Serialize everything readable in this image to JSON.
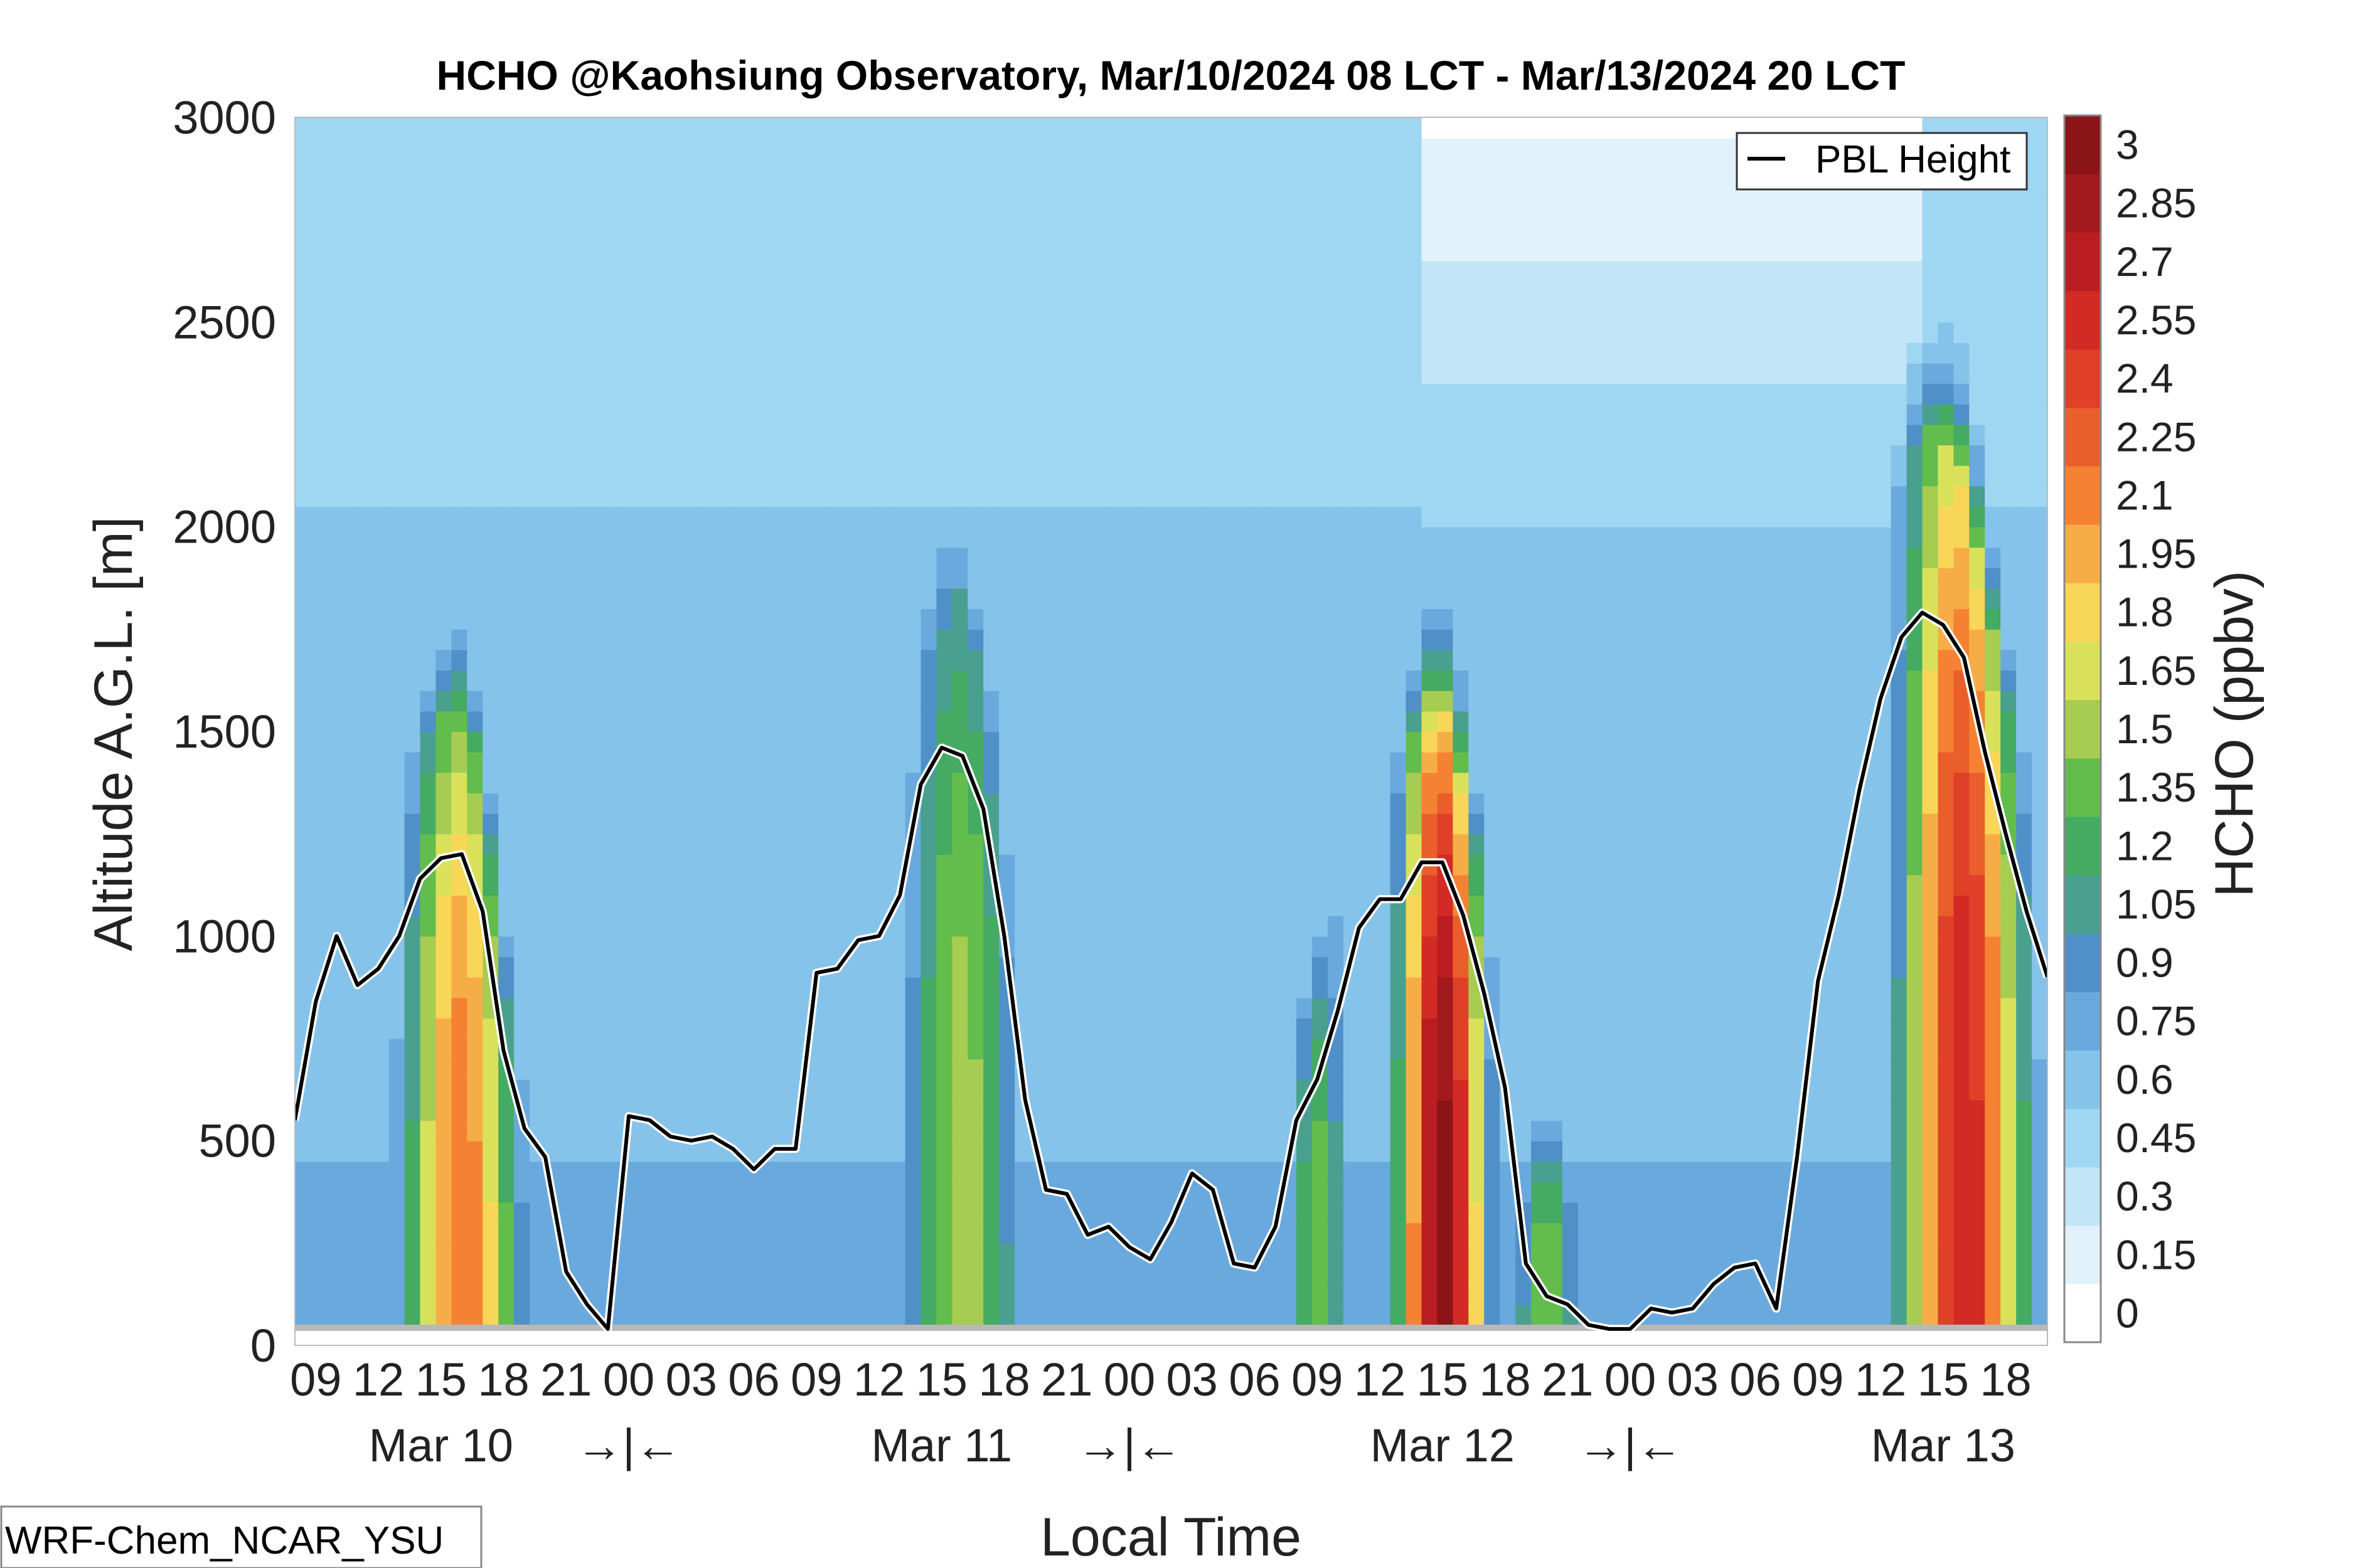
{
  "chart_data": {
    "type": "heatmap",
    "title": "HCHO @Kaohsiung Observatory, Mar/10/2024 08 LCT - Mar/13/2024 20 LCT",
    "xlabel": "Local Time",
    "ylabel": "Altitude A.G.L. [m]",
    "ylim": [
      0,
      3000
    ],
    "yticks": [
      "0",
      "500",
      "1000",
      "1500",
      "2000",
      "2500",
      "3000"
    ],
    "xhours": [
      8,
      92
    ],
    "xtick_labels": [
      "09",
      "12",
      "15",
      "18",
      "21",
      "00",
      "03",
      "06",
      "09",
      "12",
      "15",
      "18",
      "21",
      "00",
      "03",
      "06",
      "09",
      "12",
      "15",
      "18",
      "21",
      "00",
      "03",
      "06",
      "09",
      "12",
      "15",
      "18"
    ],
    "date_labels": [
      {
        "label": "Mar 10",
        "hour": 15
      },
      {
        "label": "→|←",
        "hour": 24
      },
      {
        "label": "Mar 11",
        "hour": 39
      },
      {
        "label": "→|←",
        "hour": 48
      },
      {
        "label": "Mar 12",
        "hour": 63
      },
      {
        "label": "→|←",
        "hour": 72
      },
      {
        "label": "Mar 13",
        "hour": 87
      }
    ],
    "colorbar": {
      "label": "HCHO (ppbv)",
      "ticks": [
        "0",
        "0.15",
        "0.3",
        "0.45",
        "0.6",
        "0.75",
        "0.9",
        "1.05",
        "1.2",
        "1.35",
        "1.5",
        "1.65",
        "1.8",
        "1.95",
        "2.1",
        "2.25",
        "2.4",
        "2.55",
        "2.7",
        "2.85",
        "3"
      ],
      "colors": [
        "#ffffff",
        "#e2f2fb",
        "#c2e5f7",
        "#9fd6f2",
        "#86c3ea",
        "#6aa9dd",
        "#4f90c8",
        "#4aa08f",
        "#45ab62",
        "#62bd4c",
        "#a6cc52",
        "#d9e15a",
        "#f8d658",
        "#f7ad47",
        "#f58232",
        "#ea5e2c",
        "#e04028",
        "#d42a26",
        "#bb1e22",
        "#a21a1d",
        "#8b1418"
      ]
    },
    "legend": {
      "entries": [
        "PBL Height"
      ],
      "placement": "top-right"
    },
    "pbl_height": {
      "name": "PBL Height",
      "x": [
        8,
        9,
        10,
        11,
        12,
        13,
        14,
        15,
        16,
        17,
        18,
        19,
        20,
        21,
        22,
        23,
        24,
        25,
        26,
        27,
        28,
        29,
        30,
        31,
        32,
        33,
        34,
        35,
        36,
        37,
        38,
        39,
        40,
        41,
        42,
        43,
        44,
        45,
        46,
        47,
        48,
        49,
        50,
        51,
        52,
        53,
        54,
        55,
        56,
        57,
        58,
        59,
        60,
        61,
        62,
        63,
        64,
        65,
        66,
        67,
        68,
        69,
        70,
        71,
        72,
        73,
        74,
        75,
        76,
        77,
        78,
        79,
        80,
        81,
        82,
        83,
        84,
        85,
        86,
        87,
        88,
        89,
        90,
        91,
        92
      ],
      "y": [
        550,
        840,
        1000,
        880,
        920,
        1000,
        1140,
        1190,
        1200,
        1060,
        720,
        530,
        460,
        180,
        100,
        40,
        560,
        550,
        510,
        500,
        510,
        480,
        430,
        480,
        480,
        910,
        920,
        990,
        1000,
        1100,
        1370,
        1460,
        1440,
        1310,
        1000,
        600,
        380,
        370,
        270,
        290,
        240,
        210,
        300,
        420,
        380,
        200,
        190,
        290,
        550,
        650,
        820,
        1020,
        1090,
        1090,
        1180,
        1180,
        1050,
        860,
        630,
        200,
        120,
        100,
        50,
        40,
        40,
        90,
        80,
        90,
        150,
        190,
        200,
        90,
        460,
        890,
        1100,
        1360,
        1580,
        1730,
        1790,
        1760,
        1680,
        1450,
        1250,
        1060,
        900
      ]
    },
    "model_label": "WRF-Chem_NCAR_YSU"
  }
}
